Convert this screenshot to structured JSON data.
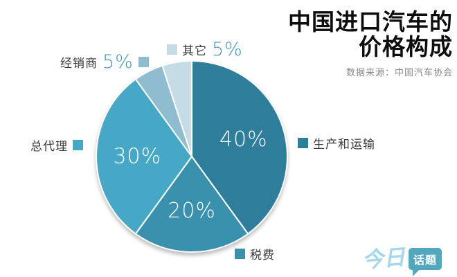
{
  "header": {
    "title_line1": "中国进口汽车的",
    "title_line2": "价格构成",
    "source": "数据来源：中国汽车协会"
  },
  "chart_data": {
    "type": "pie",
    "title": "中国进口汽车的价格构成",
    "start_angle_deg": 0,
    "direction": "clockwise",
    "legend_position": "around",
    "slices": [
      {
        "label": "生产和运输",
        "value": 40,
        "pct_label": "40%",
        "color": "#2E7E9B"
      },
      {
        "label": "税费",
        "value": 20,
        "pct_label": "20%",
        "color": "#3991AD"
      },
      {
        "label": "总代理",
        "value": 30,
        "pct_label": "30%",
        "color": "#47A8C5"
      },
      {
        "label": "经销商",
        "value": 5,
        "pct_label": "5%",
        "color": "#8FBCCE"
      },
      {
        "label": "其它",
        "value": 5,
        "pct_label": "5%",
        "color": "#C5DBE5"
      }
    ]
  },
  "logo": {
    "part1": "今日",
    "part2": "话题"
  },
  "colors": {
    "pct_text": "#4396B8",
    "label_text": "#3A3A3A",
    "title_text": "#0D0D0D",
    "source_text": "#8A8A8A",
    "logo_light": "#A5D6E9",
    "logo_bubble": "#52A7BE",
    "background": "#FFFFFF"
  }
}
